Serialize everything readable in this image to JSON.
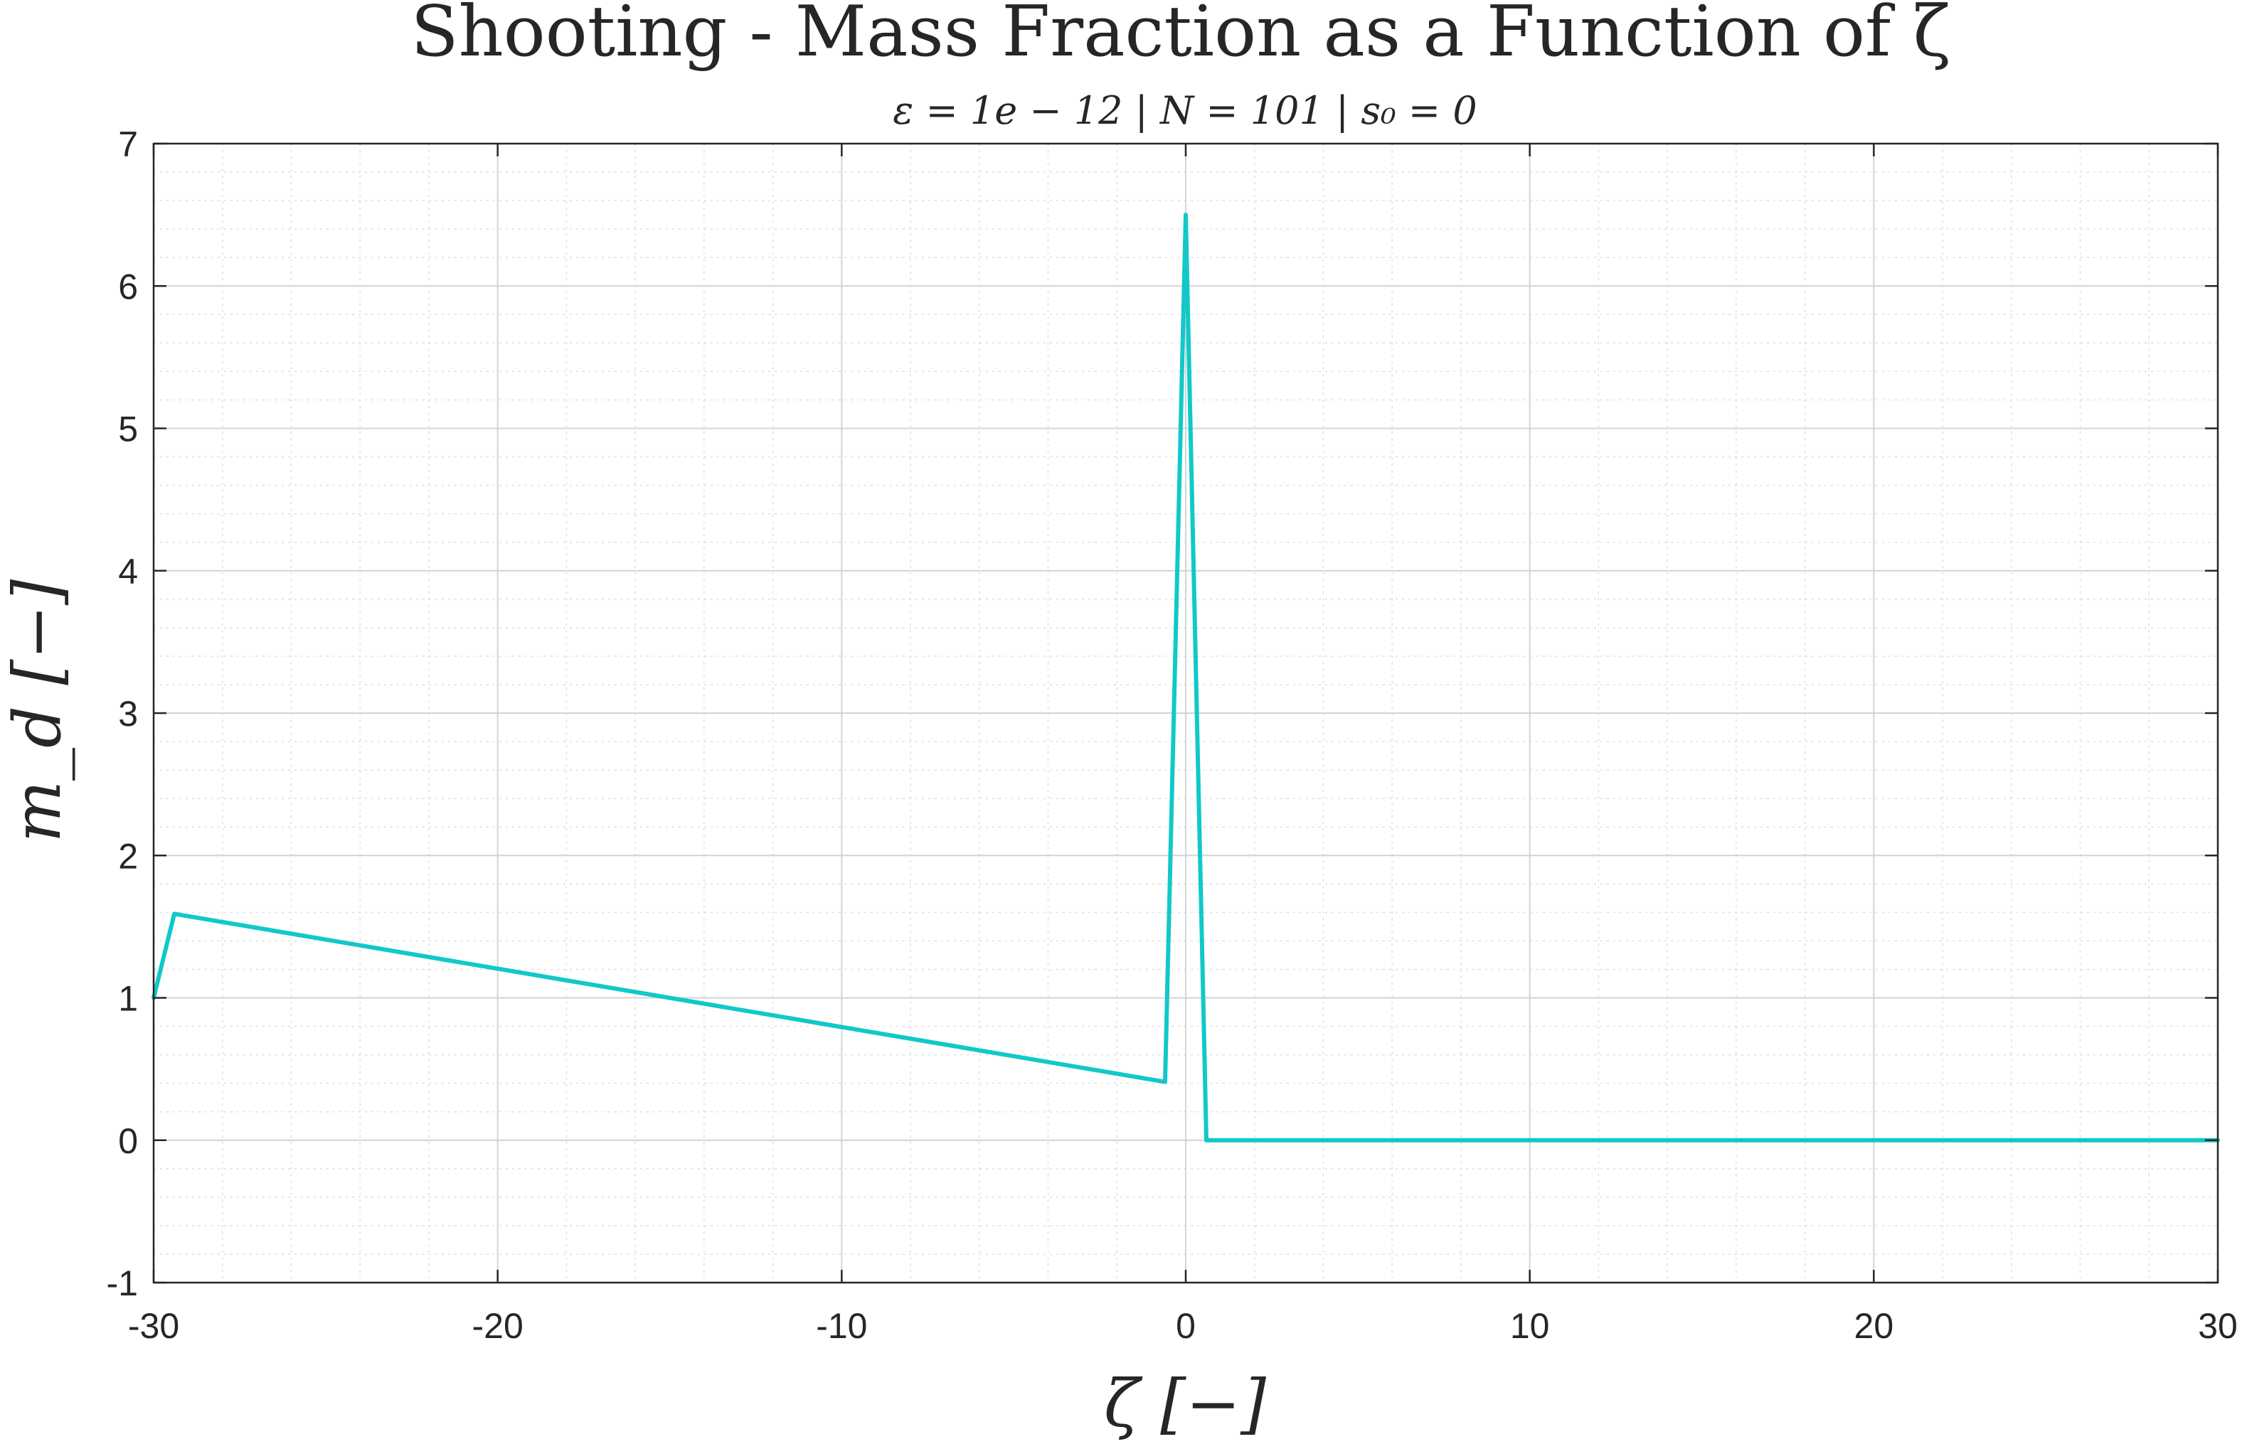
{
  "chart_data": {
    "type": "line",
    "title": "Shooting - Mass Fraction as a Function of ζ",
    "subtitle": "ε = 1e − 12 | N = 101 | s₀ = 0",
    "xlabel": "ζ [−]",
    "ylabel": "m_d [−]",
    "xlim": [
      -30,
      30
    ],
    "ylim": [
      -1,
      7
    ],
    "xticks": [
      -30,
      -20,
      -10,
      0,
      10,
      20,
      30
    ],
    "yticks": [
      -1,
      0,
      1,
      2,
      3,
      4,
      5,
      6,
      7
    ],
    "xtick_labels": [
      "-30",
      "-20",
      "-10",
      "0",
      "10",
      "20",
      "30"
    ],
    "ytick_labels": [
      "-1",
      "0",
      "1",
      "2",
      "3",
      "4",
      "5",
      "6",
      "7"
    ],
    "grid": true,
    "minor_grid": true,
    "series": [
      {
        "color": "#12c8c8",
        "x": [
          -30,
          -29.4,
          -0.6,
          0,
          0.6,
          30
        ],
        "y": [
          1.0,
          1.59,
          0.41,
          6.5,
          0.0,
          0.0
        ]
      }
    ]
  }
}
